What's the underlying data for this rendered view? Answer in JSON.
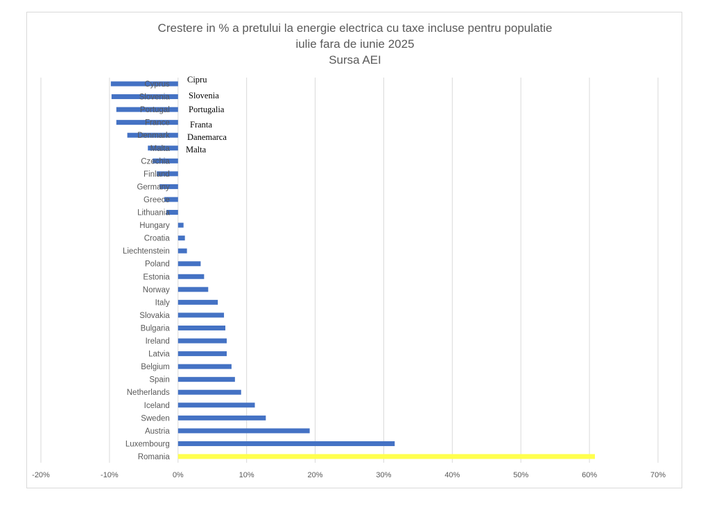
{
  "chart_data": {
    "type": "bar",
    "orientation": "horizontal",
    "title": [
      "Crestere in % a pretului la energie electrica cu taxe incluse pentru populatie",
      "iulie fara de iunie 2025",
      "Sursa AEI"
    ],
    "categories": [
      "Cyprus",
      "Slovenia",
      "Portugal",
      "France",
      "Denmark",
      "Malta",
      "Czechia",
      "Finland",
      "Germany",
      "Greece",
      "Lithuania",
      "Hungary",
      "Croatia",
      "Liechtenstein",
      "Poland",
      "Estonia",
      "Norway",
      "Italy",
      "Slovakia",
      "Bulgaria",
      "Ireland",
      "Latvia",
      "Belgium",
      "Spain",
      "Netherlands",
      "Iceland",
      "Sweden",
      "Austria",
      "Luxembourg",
      "Romania"
    ],
    "values": [
      -9.8,
      -9.7,
      -9.0,
      -9.0,
      -7.4,
      -4.4,
      -3.7,
      -3.1,
      -2.7,
      -2.0,
      -1.7,
      0.8,
      1.0,
      1.3,
      3.3,
      3.8,
      4.4,
      5.8,
      6.7,
      6.9,
      7.1,
      7.1,
      7.8,
      8.3,
      9.2,
      11.2,
      12.8,
      19.2,
      31.6,
      60.8
    ],
    "xlim": [
      -20,
      70
    ],
    "xticks": [
      "-20%",
      "-10%",
      "0%",
      "10%",
      "20%",
      "30%",
      "40%",
      "50%",
      "60%",
      "70%"
    ],
    "grid": "vertical",
    "colors": {
      "default": "#4472c4",
      "highlight": "#ffff4d",
      "highlight_category": "Romania"
    },
    "annotations": [
      "Cipru",
      "Slovenia",
      "Portugalia",
      "Franta",
      "Danemarca",
      "Malta"
    ]
  }
}
